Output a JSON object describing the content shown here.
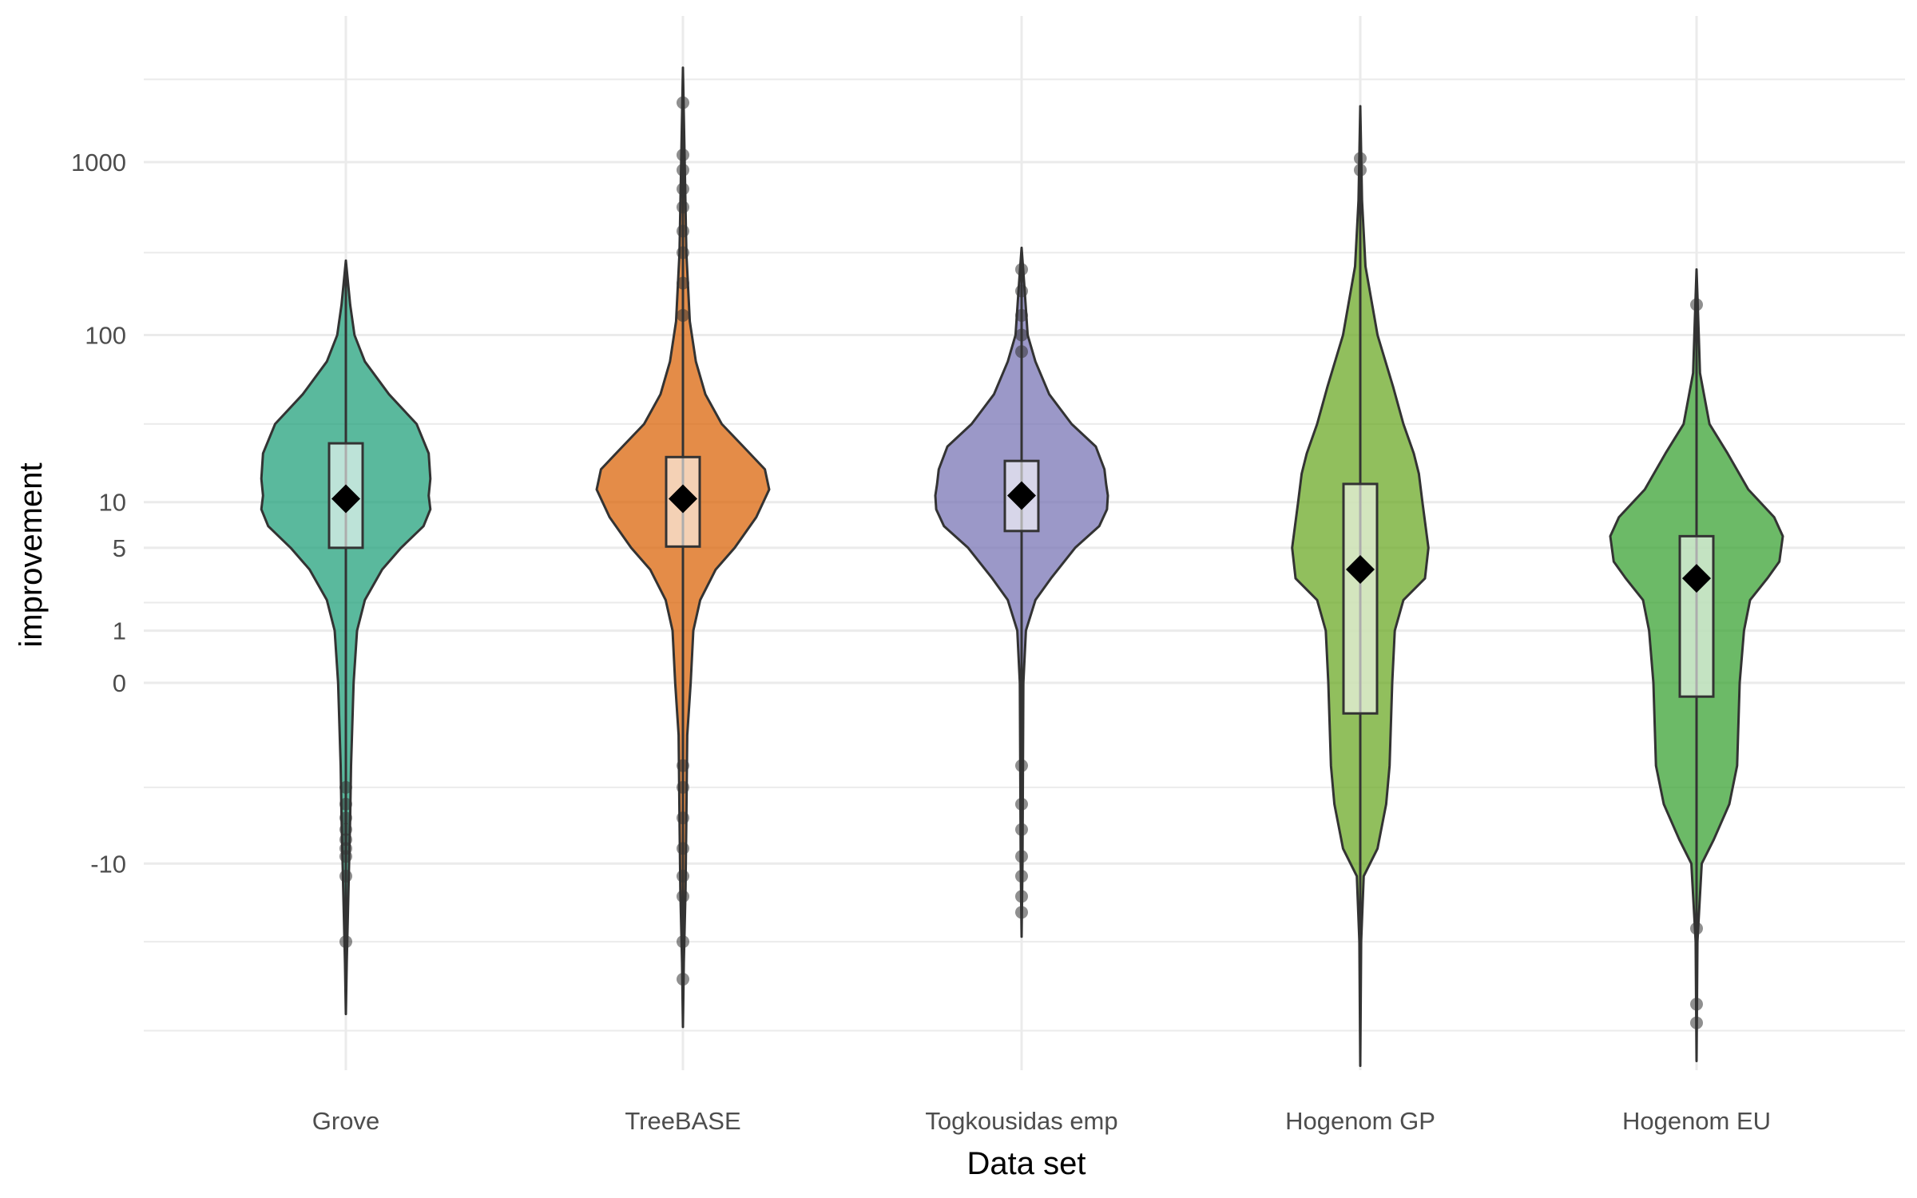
{
  "chart_data": {
    "type": "violin",
    "title": "",
    "xlabel": "Data set",
    "ylabel": "improvement",
    "y_scale": "pseudo-log (signed)",
    "y_tick_labels": [
      "1000",
      "100",
      "10",
      "5",
      "1",
      "0",
      "-10"
    ],
    "y_tick_values": [
      1000,
      100,
      10,
      5,
      1,
      0,
      -10
    ],
    "grid": true,
    "legend": "none",
    "categories": [
      "Grove",
      "TreeBASE",
      "Togkousidas emp",
      "Hogenom GP",
      "Hogenom EU"
    ],
    "series": [
      {
        "name": "Grove",
        "color": "#1b9e77",
        "summary": {
          "whisker_low": -3,
          "q1": 5,
          "median": 10.5,
          "mean": 10.5,
          "q3": 23,
          "whisker_high": 130
        },
        "range": {
          "min": -80,
          "max": 270
        },
        "outliers": [
          -3,
          -4,
          -5,
          -6,
          -7,
          -8,
          -9,
          -12,
          -30
        ]
      },
      {
        "name": "TreeBASE",
        "color": "#d95f02",
        "summary": {
          "whisker_low": -1.8,
          "q1": 5.1,
          "median": 10.5,
          "mean": 10.5,
          "q3": 19,
          "whisker_high": 120
        },
        "range": {
          "min": -95,
          "max": 3500
        },
        "outliers": [
          -2,
          -3,
          -5,
          -8,
          -12,
          -16,
          -30,
          -50,
          130,
          200,
          300,
          400,
          550,
          700,
          900,
          1100,
          2200
        ]
      },
      {
        "name": "Togkousidas emp",
        "color": "#7570b3",
        "summary": {
          "whisker_low": 1,
          "q1": 6.5,
          "median": 11,
          "mean": 11,
          "q3": 18,
          "whisker_high": 75
        },
        "range": {
          "min": -28,
          "max": 320
        },
        "outliers": [
          -2,
          -4,
          -6,
          -9,
          -12,
          -16,
          -20,
          80,
          100,
          130,
          180,
          240
        ]
      },
      {
        "name": "Hogenom GP",
        "color": "#66a61e",
        "summary": {
          "whisker_low": -160,
          "q1": -0.5,
          "median": 3.5,
          "mean": 3.5,
          "q3": 13,
          "whisker_high": 2100
        },
        "range": {
          "min": -160,
          "max": 2100
        },
        "outliers": [
          900,
          1050
        ]
      },
      {
        "name": "Hogenom EU",
        "color": "#33a02c",
        "summary": {
          "whisker_low": -150,
          "q1": -0.2,
          "median": 3,
          "mean": 3,
          "q3": 6,
          "whisker_high": 240
        },
        "range": {
          "min": -150,
          "max": 240
        },
        "outliers": [
          -25,
          -70,
          -90,
          150
        ]
      }
    ]
  }
}
